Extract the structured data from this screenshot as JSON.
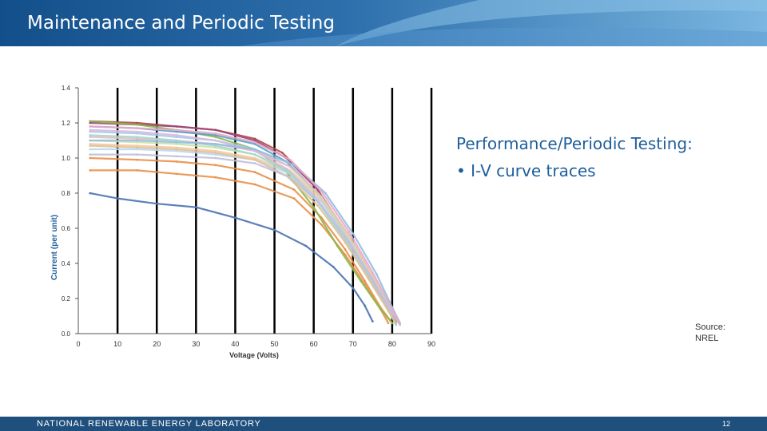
{
  "slide": {
    "title": "Maintenance and Periodic Testing",
    "text": {
      "heading": "Performance/Periodic Testing:",
      "bullets": [
        "I-V curve traces"
      ]
    },
    "source_lines": [
      "Source:",
      "NREL"
    ],
    "footer": {
      "organization": "NATIONAL RENEWABLE ENERGY LABORATORY",
      "page_number": "12"
    },
    "colors": {
      "header_dark": "#1b5a94",
      "header_light": "#7ab6e0",
      "footer": "#1f4f7c",
      "text_accent": "#1f5f9c"
    }
  },
  "chart_data": {
    "type": "line",
    "title": "",
    "xlabel": "Voltage (Volts)",
    "ylabel": "Current (per unit)",
    "xlim": [
      0,
      90
    ],
    "ylim": [
      0,
      1.4
    ],
    "x_ticks": [
      "0",
      "10",
      "20",
      "30",
      "40",
      "50",
      "60",
      "70",
      "80",
      "90"
    ],
    "y_ticks": [
      "0.0",
      "0.2",
      "0.4",
      "0.6",
      "0.8",
      "1.0",
      "1.2",
      "1.4"
    ],
    "grid": "vertical",
    "legend": "none",
    "series": [
      {
        "color": "#4a72b0",
        "points": [
          [
            3,
            0.8
          ],
          [
            10,
            0.77
          ],
          [
            20,
            0.74
          ],
          [
            30,
            0.72
          ],
          [
            40,
            0.66
          ],
          [
            50,
            0.59
          ],
          [
            58,
            0.5
          ],
          [
            65,
            0.38
          ],
          [
            70,
            0.26
          ],
          [
            73,
            0.16
          ],
          [
            75,
            0.07
          ]
        ]
      },
      {
        "color": "#e8904a",
        "points": [
          [
            3,
            0.93
          ],
          [
            15,
            0.93
          ],
          [
            25,
            0.91
          ],
          [
            35,
            0.89
          ],
          [
            45,
            0.85
          ],
          [
            55,
            0.77
          ],
          [
            62,
            0.62
          ],
          [
            68,
            0.45
          ],
          [
            73,
            0.28
          ],
          [
            77,
            0.14
          ],
          [
            79,
            0.06
          ]
        ]
      },
      {
        "color": "#e8904a",
        "points": [
          [
            3,
            1.0
          ],
          [
            15,
            0.99
          ],
          [
            25,
            0.98
          ],
          [
            35,
            0.96
          ],
          [
            45,
            0.92
          ],
          [
            55,
            0.82
          ],
          [
            62,
            0.66
          ],
          [
            68,
            0.48
          ],
          [
            73,
            0.3
          ],
          [
            77,
            0.15
          ],
          [
            80,
            0.06
          ]
        ]
      },
      {
        "color": "#b04a4a",
        "points": [
          [
            3,
            1.21
          ],
          [
            15,
            1.2
          ],
          [
            25,
            1.18
          ],
          [
            35,
            1.16
          ],
          [
            45,
            1.11
          ],
          [
            52,
            1.03
          ],
          [
            60,
            0.85
          ],
          [
            67,
            0.62
          ],
          [
            73,
            0.4
          ],
          [
            78,
            0.18
          ],
          [
            81,
            0.07
          ]
        ]
      },
      {
        "color": "#9a4a7a",
        "points": [
          [
            3,
            1.2
          ],
          [
            15,
            1.19
          ],
          [
            25,
            1.18
          ],
          [
            35,
            1.16
          ],
          [
            45,
            1.1
          ],
          [
            53,
            1.0
          ],
          [
            61,
            0.82
          ],
          [
            68,
            0.58
          ],
          [
            74,
            0.35
          ],
          [
            79,
            0.15
          ],
          [
            81,
            0.06
          ]
        ]
      },
      {
        "color": "#8ab84a",
        "points": [
          [
            3,
            1.21
          ],
          [
            15,
            1.19
          ],
          [
            25,
            1.16
          ],
          [
            35,
            1.12
          ],
          [
            45,
            1.05
          ],
          [
            53,
            0.92
          ],
          [
            60,
            0.72
          ],
          [
            66,
            0.5
          ],
          [
            72,
            0.3
          ],
          [
            77,
            0.14
          ],
          [
            80,
            0.06
          ]
        ]
      },
      {
        "color": "#5aa0c8",
        "points": [
          [
            3,
            1.18
          ],
          [
            15,
            1.17
          ],
          [
            25,
            1.15
          ],
          [
            35,
            1.13
          ],
          [
            45,
            1.08
          ],
          [
            53,
            0.98
          ],
          [
            61,
            0.8
          ],
          [
            68,
            0.56
          ],
          [
            74,
            0.34
          ],
          [
            79,
            0.14
          ],
          [
            81,
            0.05
          ]
        ]
      },
      {
        "color": "#a8c8e8",
        "points": [
          [
            3,
            1.15
          ],
          [
            15,
            1.14
          ],
          [
            25,
            1.12
          ],
          [
            35,
            1.1
          ],
          [
            45,
            1.05
          ],
          [
            54,
            0.95
          ],
          [
            62,
            0.78
          ],
          [
            69,
            0.55
          ],
          [
            75,
            0.32
          ],
          [
            80,
            0.12
          ],
          [
            82,
            0.05
          ]
        ]
      },
      {
        "color": "#f0b8b8",
        "points": [
          [
            3,
            1.12
          ],
          [
            15,
            1.11
          ],
          [
            25,
            1.1
          ],
          [
            35,
            1.08
          ],
          [
            45,
            1.04
          ],
          [
            54,
            0.95
          ],
          [
            62,
            0.78
          ],
          [
            69,
            0.56
          ],
          [
            75,
            0.33
          ],
          [
            80,
            0.13
          ],
          [
            82,
            0.05
          ]
        ]
      },
      {
        "color": "#c8e0a8",
        "points": [
          [
            3,
            1.1
          ],
          [
            15,
            1.09
          ],
          [
            25,
            1.08
          ],
          [
            35,
            1.06
          ],
          [
            45,
            1.02
          ],
          [
            54,
            0.93
          ],
          [
            62,
            0.77
          ],
          [
            69,
            0.55
          ],
          [
            75,
            0.32
          ],
          [
            80,
            0.13
          ],
          [
            82,
            0.06
          ]
        ]
      },
      {
        "color": "#f4c8a0",
        "points": [
          [
            3,
            1.08
          ],
          [
            15,
            1.07
          ],
          [
            25,
            1.06
          ],
          [
            35,
            1.04
          ],
          [
            45,
            1.0
          ],
          [
            54,
            0.92
          ],
          [
            62,
            0.76
          ],
          [
            69,
            0.54
          ],
          [
            75,
            0.32
          ],
          [
            80,
            0.12
          ],
          [
            82,
            0.05
          ]
        ]
      },
      {
        "color": "#b8d8f0",
        "points": [
          [
            3,
            1.05
          ],
          [
            15,
            1.05
          ],
          [
            25,
            1.04
          ],
          [
            35,
            1.02
          ],
          [
            45,
            0.99
          ],
          [
            54,
            0.91
          ],
          [
            62,
            0.75
          ],
          [
            69,
            0.53
          ],
          [
            75,
            0.31
          ],
          [
            80,
            0.12
          ],
          [
            82,
            0.05
          ]
        ]
      },
      {
        "color": "#d8b8e0",
        "points": [
          [
            3,
            1.16
          ],
          [
            15,
            1.15
          ],
          [
            25,
            1.13
          ],
          [
            35,
            1.1
          ],
          [
            45,
            1.04
          ],
          [
            53,
            0.94
          ],
          [
            61,
            0.76
          ],
          [
            68,
            0.54
          ],
          [
            74,
            0.33
          ],
          [
            79,
            0.14
          ],
          [
            81,
            0.06
          ]
        ]
      },
      {
        "color": "#a0d8d0",
        "points": [
          [
            3,
            1.13
          ],
          [
            15,
            1.12
          ],
          [
            25,
            1.1
          ],
          [
            35,
            1.07
          ],
          [
            45,
            1.02
          ],
          [
            53,
            0.93
          ],
          [
            61,
            0.75
          ],
          [
            68,
            0.53
          ],
          [
            74,
            0.32
          ],
          [
            79,
            0.13
          ],
          [
            81,
            0.05
          ]
        ]
      },
      {
        "color": "#e0c090",
        "points": [
          [
            3,
            1.07
          ],
          [
            15,
            1.06
          ],
          [
            25,
            1.05
          ],
          [
            35,
            1.03
          ],
          [
            45,
            0.99
          ],
          [
            53,
            0.9
          ],
          [
            61,
            0.73
          ],
          [
            68,
            0.52
          ],
          [
            74,
            0.31
          ],
          [
            79,
            0.13
          ],
          [
            81,
            0.06
          ]
        ]
      },
      {
        "color": "#c0c0d8",
        "points": [
          [
            3,
            1.02
          ],
          [
            15,
            1.02
          ],
          [
            25,
            1.01
          ],
          [
            35,
            1.0
          ],
          [
            45,
            0.97
          ],
          [
            54,
            0.89
          ],
          [
            62,
            0.73
          ],
          [
            69,
            0.52
          ],
          [
            75,
            0.31
          ],
          [
            80,
            0.12
          ],
          [
            82,
            0.05
          ]
        ]
      },
      {
        "color": "#8fbfe0",
        "points": [
          [
            3,
            1.1
          ],
          [
            15,
            1.1
          ],
          [
            25,
            1.09
          ],
          [
            35,
            1.08
          ],
          [
            45,
            1.05
          ],
          [
            55,
            0.96
          ],
          [
            63,
            0.8
          ],
          [
            70,
            0.57
          ],
          [
            76,
            0.34
          ],
          [
            80,
            0.15
          ],
          [
            82,
            0.06
          ]
        ]
      },
      {
        "color": "#e8a8c8",
        "points": [
          [
            3,
            1.18
          ],
          [
            15,
            1.17
          ],
          [
            25,
            1.16
          ],
          [
            35,
            1.14
          ],
          [
            45,
            1.09
          ],
          [
            54,
            0.99
          ],
          [
            62,
            0.81
          ],
          [
            69,
            0.58
          ],
          [
            75,
            0.35
          ],
          [
            80,
            0.14
          ],
          [
            82,
            0.06
          ]
        ]
      }
    ]
  }
}
